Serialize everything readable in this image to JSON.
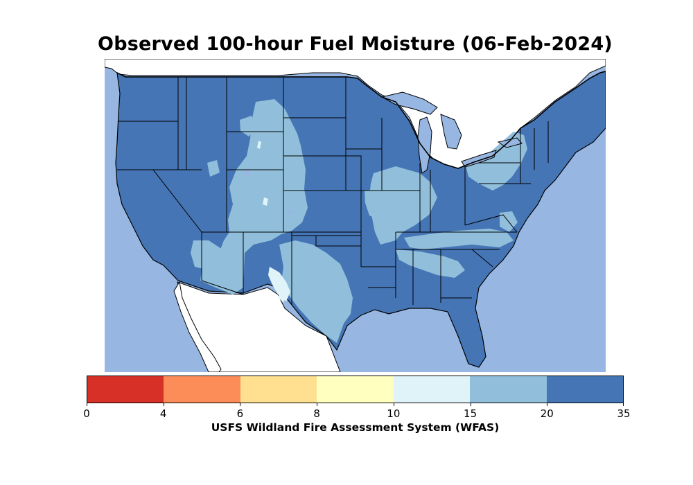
{
  "title": "Observed 100-hour Fuel Moisture (06-Feb-2024)",
  "colors": {
    "ocean": "#97b6e1",
    "land_foreign": "#ffffff",
    "c0_4": "#d73027",
    "c4_6": "#fc8d59",
    "c6_8": "#fee090",
    "c8_10": "#ffffbf",
    "c10_15": "#e0f3f8",
    "c15_20": "#91bfdb",
    "c20_35": "#4575b4"
  },
  "colorbar": {
    "segments": [
      {
        "range": "0-4",
        "color": "#d73027"
      },
      {
        "range": "4-6",
        "color": "#fc8d59"
      },
      {
        "range": "6-8",
        "color": "#fee090"
      },
      {
        "range": "8-10",
        "color": "#ffffbf"
      },
      {
        "range": "10-15",
        "color": "#e0f3f8"
      },
      {
        "range": "15-20",
        "color": "#91bfdb"
      },
      {
        "range": "20-35",
        "color": "#4575b4"
      }
    ],
    "ticks": [
      "0",
      "4",
      "6",
      "8",
      "10",
      "15",
      "20",
      "35"
    ],
    "label": "USFS Wildland Fire Assessment System (WFAS)"
  }
}
